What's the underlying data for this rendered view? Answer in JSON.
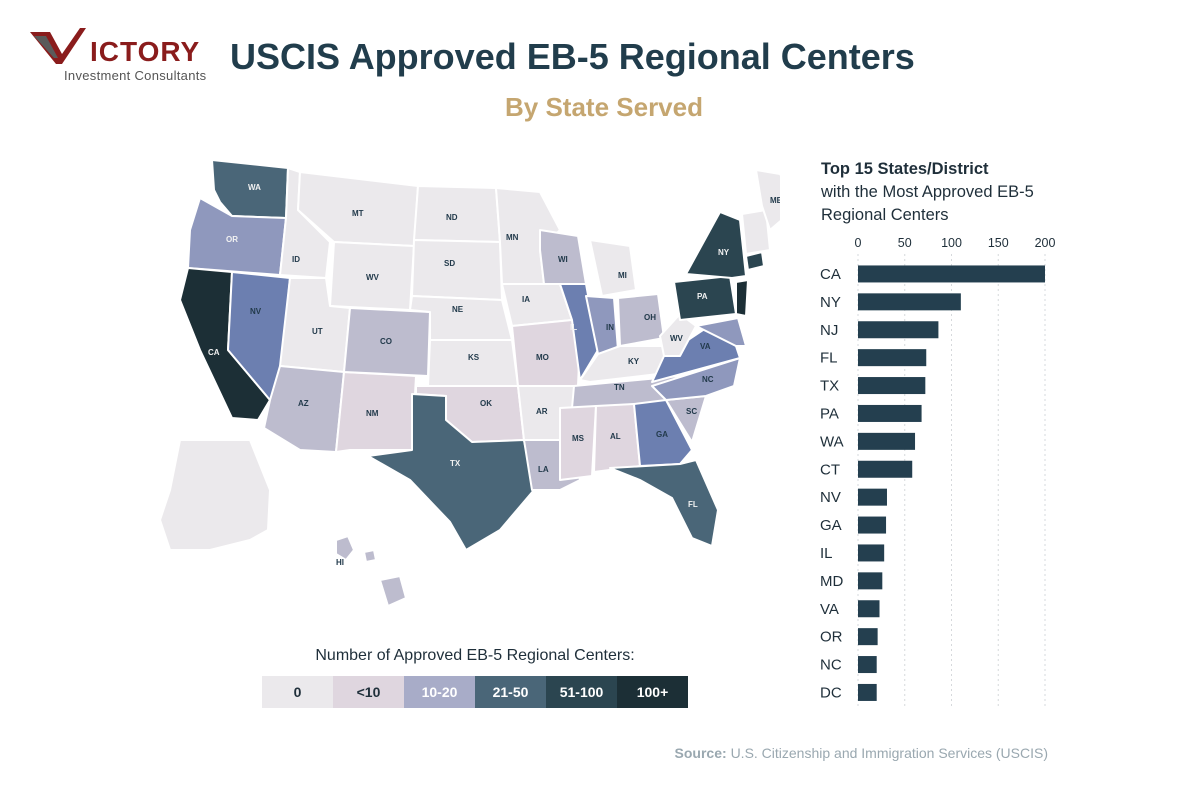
{
  "header": {
    "logo_name": "ICTORY",
    "logo_tagline": "Investment Consultants",
    "title": "USCIS Approved EB-5 Regional Centers",
    "subtitle": "By State Served"
  },
  "colors": {
    "c0": "#ebe9ec",
    "c1": "#dfd6df",
    "c2": "#bdbcce",
    "c3": "#8f98bd",
    "c3b": "#6c7fb0",
    "c4": "#4a6678",
    "c5": "#2b4550",
    "c6": "#1c2f36",
    "bar": "#243f4f",
    "accent_gold": "#c5a670",
    "logo_red": "#8a1c1c"
  },
  "map": {
    "states": [
      "WA",
      "OR",
      "CA",
      "NV",
      "ID",
      "MT",
      "WV",
      "UT",
      "AZ",
      "NM",
      "CO",
      "ND",
      "SD",
      "NE",
      "KS",
      "OK",
      "TX",
      "MN",
      "IA",
      "MO",
      "AR",
      "LA",
      "WI",
      "IL",
      "MI",
      "IN",
      "OH",
      "KY",
      "TN",
      "MS",
      "AL",
      "GA",
      "FL",
      "SC",
      "NC",
      "VA",
      "WV",
      "PA",
      "NY",
      "ME",
      "HI"
    ]
  },
  "legend": {
    "title": "Number of Approved EB-5 Regional Centers:",
    "items": [
      {
        "label": "0",
        "color": "#ebe9ec",
        "text": "#1f2f3a"
      },
      {
        "label": "<10",
        "color": "#dfd6df",
        "text": "#1f2f3a"
      },
      {
        "label": "10-20",
        "color": "#a8acc8",
        "text": "#ffffff"
      },
      {
        "label": "21-50",
        "color": "#4a6678",
        "text": "#ffffff"
      },
      {
        "label": "51-100",
        "color": "#2b4550",
        "text": "#ffffff"
      },
      {
        "label": "100+",
        "color": "#1c2f36",
        "text": "#ffffff"
      }
    ]
  },
  "side": {
    "heading_bold": "Top 15 States/District",
    "heading_rest": "with the Most Approved EB-5 Regional Centers"
  },
  "chart_data": {
    "type": "bar",
    "orientation": "horizontal",
    "title": "Top 15 States/District with the Most Approved EB-5 Regional Centers",
    "categories": [
      "CA",
      "NY",
      "NJ",
      "FL",
      "TX",
      "PA",
      "WA",
      "CT",
      "NV",
      "GA",
      "IL",
      "MD",
      "VA",
      "OR",
      "NC",
      "DC"
    ],
    "values": [
      200,
      110,
      86,
      73,
      72,
      68,
      61,
      58,
      31,
      30,
      28,
      26,
      23,
      21,
      20,
      20
    ],
    "xticks": [
      0,
      50,
      100,
      150,
      200
    ],
    "xlim": [
      0,
      200
    ],
    "grid": "vertical dashed"
  },
  "source": {
    "label": "Source:",
    "text": "U.S. Citizenship and Immigration Services (USCIS)"
  }
}
